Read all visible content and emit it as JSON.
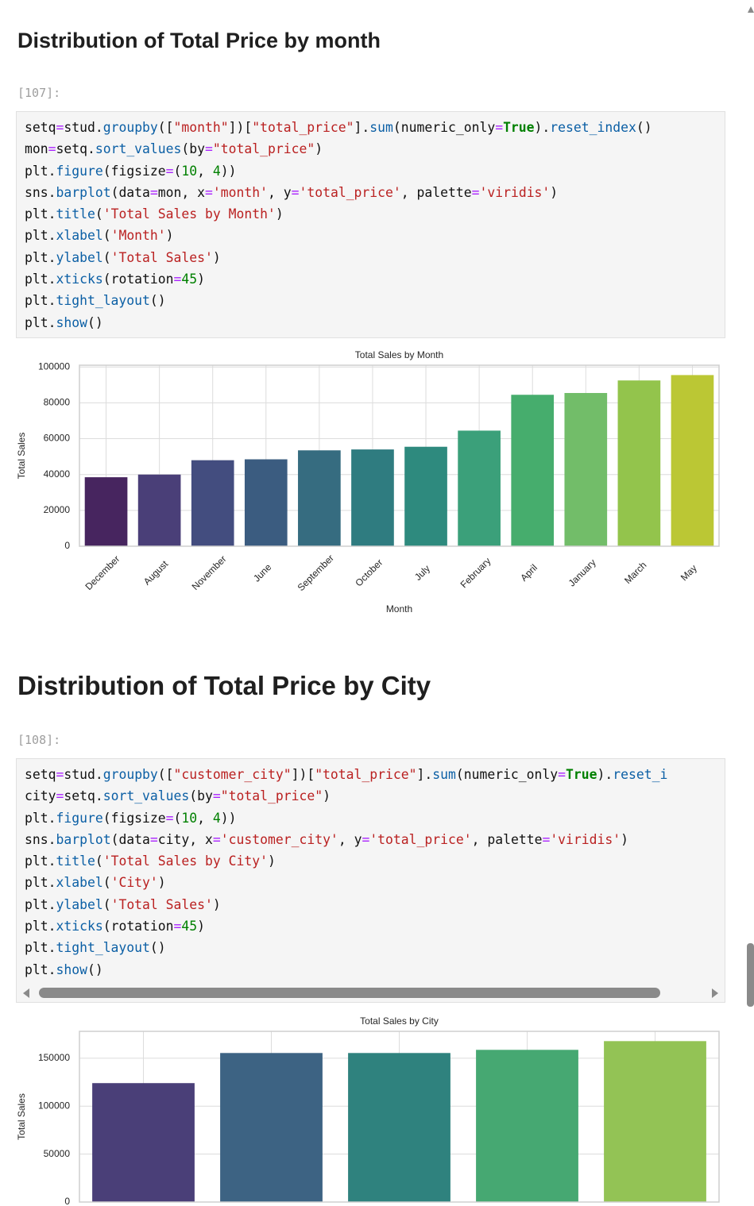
{
  "sections": [
    {
      "heading": "Distribution of Total Price by month",
      "prompt": "[107]:",
      "code": [
        [
          "setq",
          "=",
          "stud",
          ".",
          "groupby",
          "([",
          "\"month\"",
          "])[",
          "\"total_price\"",
          "].",
          "sum",
          "(",
          "numeric_only",
          "=",
          "True",
          ").",
          "reset_index",
          "()"
        ],
        [
          "mon",
          "=",
          "setq",
          ".",
          "sort_values",
          "(",
          "by",
          "=",
          "\"total_price\"",
          ")"
        ],
        [
          "plt",
          ".",
          "figure",
          "(",
          "figsize",
          "=",
          "(",
          "10",
          ", ",
          "4",
          "))"
        ],
        [
          "sns",
          ".",
          "barplot",
          "(",
          "data",
          "=",
          "mon",
          ", ",
          "x",
          "=",
          "'month'",
          ", ",
          "y",
          "=",
          "'total_price'",
          ", ",
          "palette",
          "=",
          "'viridis'",
          ")"
        ],
        [
          "plt",
          ".",
          "title",
          "(",
          "'Total Sales by Month'",
          ")"
        ],
        [
          "plt",
          ".",
          "xlabel",
          "(",
          "'Month'",
          ")"
        ],
        [
          "plt",
          ".",
          "ylabel",
          "(",
          "'Total Sales'",
          ")"
        ],
        [
          "plt",
          ".",
          "xticks",
          "(",
          "rotation",
          "=",
          "45",
          ")"
        ],
        [
          "plt",
          ".",
          "tight_layout",
          "()"
        ],
        [
          "plt",
          ".",
          "show",
          "()"
        ]
      ]
    },
    {
      "heading": "Distribution of Total Price by City",
      "prompt": "[108]:",
      "code": [
        [
          "setq",
          "=",
          "stud",
          ".",
          "groupby",
          "([",
          "\"customer_city\"",
          "])[",
          "\"total_price\"",
          "].",
          "sum",
          "(",
          "numeric_only",
          "=",
          "True",
          ").",
          "reset_i"
        ],
        [
          "city",
          "=",
          "setq",
          ".",
          "sort_values",
          "(",
          "by",
          "=",
          "\"total_price\"",
          ")"
        ],
        [
          "plt",
          ".",
          "figure",
          "(",
          "figsize",
          "=",
          "(",
          "10",
          ", ",
          "4",
          "))"
        ],
        [
          "sns",
          ".",
          "barplot",
          "(",
          "data",
          "=",
          "city",
          ", ",
          "x",
          "=",
          "'customer_city'",
          ", ",
          "y",
          "=",
          "'total_price'",
          ", ",
          "palette",
          "=",
          "'viridis'",
          ")"
        ],
        [
          "plt",
          ".",
          "title",
          "(",
          "'Total Sales by City'",
          ")"
        ],
        [
          "plt",
          ".",
          "xlabel",
          "(",
          "'City'",
          ")"
        ],
        [
          "plt",
          ".",
          "ylabel",
          "(",
          "'Total Sales'",
          ")"
        ],
        [
          "plt",
          ".",
          "xticks",
          "(",
          "rotation",
          "=",
          "45",
          ")"
        ],
        [
          "plt",
          ".",
          "tight_layout",
          "()"
        ],
        [
          "plt",
          ".",
          "show",
          "()"
        ]
      ]
    }
  ],
  "chart_data": [
    {
      "type": "bar",
      "title": "Total Sales by Month",
      "xlabel": "Month",
      "ylabel": "Total Sales",
      "categories": [
        "December",
        "August",
        "November",
        "June",
        "September",
        "October",
        "July",
        "February",
        "April",
        "January",
        "March",
        "May"
      ],
      "values": [
        38500,
        40000,
        48000,
        48500,
        53500,
        54000,
        55500,
        64500,
        84500,
        85500,
        92500,
        95500
      ],
      "colors": [
        "#47255f",
        "#4a3f78",
        "#434d7f",
        "#3b5c80",
        "#366c80",
        "#2f7c80",
        "#2e8a7e",
        "#3ba07a",
        "#46ad6d",
        "#72bd69",
        "#93c44c",
        "#bbc734"
      ],
      "ylim": [
        0,
        101000
      ],
      "yticks": [
        0,
        20000,
        40000,
        60000,
        80000,
        100000
      ],
      "grid": true
    },
    {
      "type": "bar",
      "title": "Total Sales by City",
      "ylabel": "Total Sales",
      "categories": [
        null,
        null,
        null,
        null,
        null
      ],
      "values": [
        124000,
        155400,
        155400,
        158700,
        167800
      ],
      "colors": [
        "#4a3f78",
        "#3d6383",
        "#2f827e",
        "#46a872",
        "#93c355"
      ],
      "ylim": [
        0,
        178000
      ],
      "yticks": [
        0,
        50000,
        100000,
        150000
      ],
      "grid": true
    }
  ]
}
